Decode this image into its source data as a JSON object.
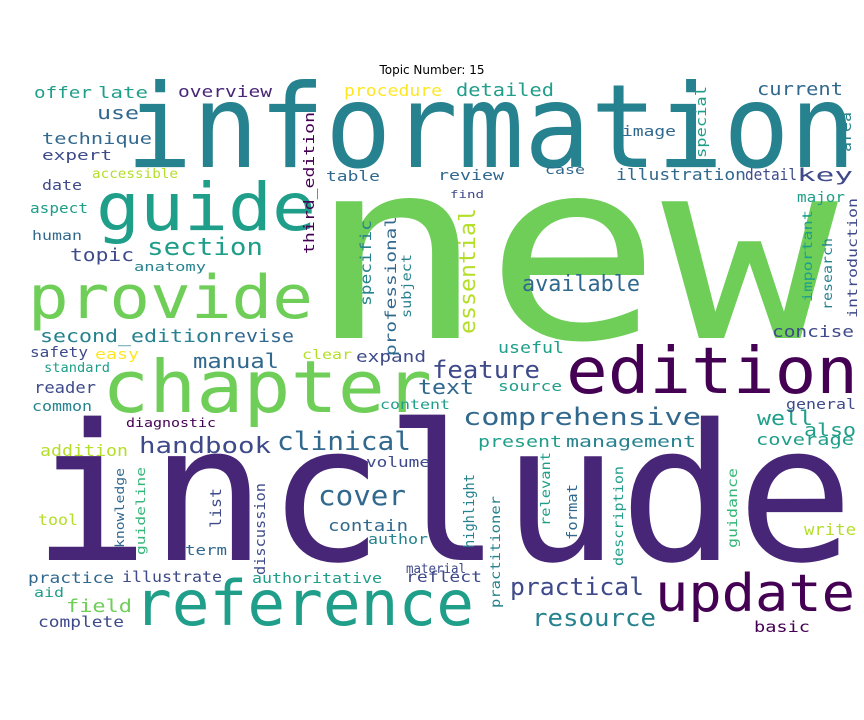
{
  "title": "Topic Number: 15",
  "palette": {
    "dark_purple": "#440154",
    "purple": "#482677",
    "indigo": "#3e4a89",
    "blue": "#31688e",
    "teal": "#26828e",
    "green_teal": "#1f9e89",
    "green": "#35b779",
    "light_green": "#6ece58",
    "yellow_green": "#b5de2b",
    "yellow": "#fde725"
  },
  "words": [
    "information",
    "new",
    "guide",
    "provide",
    "chapter",
    "edition",
    "include",
    "reference",
    "update",
    "comprehensive",
    "handbook",
    "clinical",
    "cover",
    "practical",
    "resource",
    "section",
    "available",
    "essential",
    "feature",
    "manual",
    "second_edition",
    "revise",
    "text",
    "well",
    "also",
    "coverage",
    "management",
    "present",
    "topic",
    "use",
    "current",
    "detailed",
    "procedure",
    "overview",
    "offer",
    "late",
    "technique",
    "expert",
    "image",
    "special",
    "area",
    "illustration",
    "detail",
    "key",
    "review",
    "table",
    "case",
    "find",
    "accessible",
    "date",
    "aspect",
    "human",
    "anatomy",
    "third_edition",
    "specific",
    "professional",
    "subject",
    "major",
    "research",
    "introduction",
    "important",
    "concise",
    "useful",
    "expand",
    "clear",
    "easy",
    "safety",
    "standard",
    "reader",
    "common",
    "source",
    "content",
    "general",
    "diagnostic",
    "addition",
    "knowledge",
    "guideline",
    "list",
    "volume",
    "contain",
    "author",
    "discussion",
    "highlight",
    "relevant",
    "format",
    "description",
    "guidance",
    "write",
    "tool",
    "term",
    "practitioner",
    "material",
    "practice",
    "illustrate",
    "authoritative",
    "reflect",
    "aid",
    "field",
    "complete",
    "basic"
  ]
}
